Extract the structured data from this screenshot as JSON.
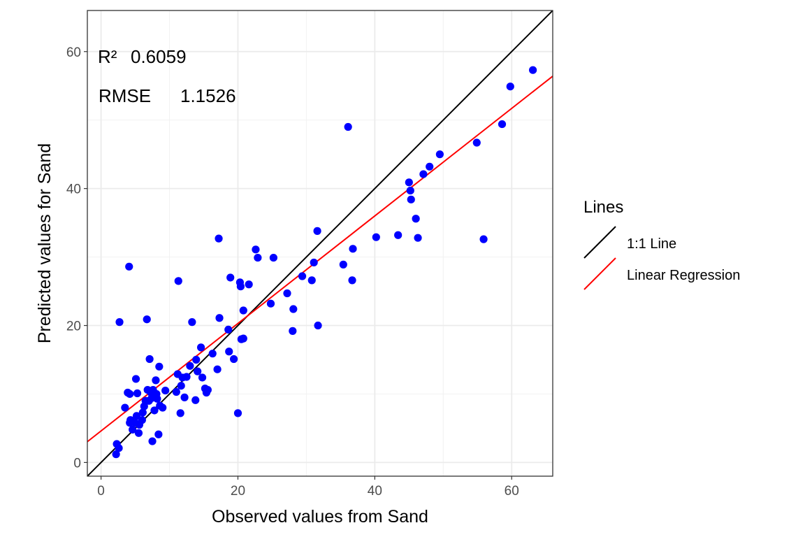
{
  "chart_data": {
    "type": "scatter",
    "xlabel": "Observed values from Sand",
    "ylabel": "Predicted values for Sand",
    "xlim": [
      -2,
      66
    ],
    "ylim": [
      -2,
      66
    ],
    "x_ticks": [
      0,
      20,
      40,
      60
    ],
    "y_ticks": [
      0,
      20,
      40,
      60
    ],
    "grid": true,
    "annotations": {
      "r2_label": "R²",
      "r2_value": "0.6059",
      "rmse_label": "RMSE",
      "rmse_value": "1.1526"
    },
    "legend": {
      "title": "Lines",
      "placement": "right",
      "entries": [
        {
          "label": "1:1 Line",
          "color": "#000000"
        },
        {
          "label": "Linear Regression",
          "color": "#ff0000"
        }
      ]
    },
    "lines": [
      {
        "name": "1:1 Line",
        "color": "#000000",
        "slope": 1,
        "intercept": 0
      },
      {
        "name": "Linear Regression",
        "color": "#ff0000",
        "slope": 0.785,
        "intercept": 4.6
      }
    ],
    "point_color": "#0000ff",
    "points": [
      [
        2.2,
        1.2
      ],
      [
        2.3,
        2.7
      ],
      [
        2.6,
        2.1
      ],
      [
        2.7,
        20.5
      ],
      [
        3.5,
        8.0
      ],
      [
        3.9,
        10.2
      ],
      [
        4.2,
        5.8
      ],
      [
        4.2,
        10.0
      ],
      [
        4.1,
        28.6
      ],
      [
        4.3,
        6.2
      ],
      [
        4.6,
        4.8
      ],
      [
        5.0,
        5.8
      ],
      [
        5.1,
        12.2
      ],
      [
        5.2,
        6.8
      ],
      [
        5.3,
        10.1
      ],
      [
        5.5,
        4.3
      ],
      [
        5.6,
        5.5
      ],
      [
        6.0,
        6.2
      ],
      [
        6.1,
        7.3
      ],
      [
        6.3,
        8.2
      ],
      [
        6.5,
        9.0
      ],
      [
        6.7,
        20.9
      ],
      [
        6.8,
        10.6
      ],
      [
        7.0,
        9.0
      ],
      [
        7.1,
        15.1
      ],
      [
        7.3,
        10.2
      ],
      [
        7.4,
        9.4
      ],
      [
        7.5,
        3.1
      ],
      [
        7.6,
        10.6
      ],
      [
        7.8,
        7.6
      ],
      [
        8.0,
        12.0
      ],
      [
        8.1,
        10.0
      ],
      [
        8.2,
        9.3
      ],
      [
        8.4,
        4.1
      ],
      [
        8.5,
        14.0
      ],
      [
        8.6,
        8.3
      ],
      [
        9.0,
        8.0
      ],
      [
        9.4,
        10.5
      ],
      [
        11.0,
        10.3
      ],
      [
        11.2,
        12.9
      ],
      [
        11.3,
        26.5
      ],
      [
        11.6,
        7.2
      ],
      [
        11.7,
        11.2
      ],
      [
        11.9,
        12.4
      ],
      [
        12.2,
        9.5
      ],
      [
        12.5,
        12.5
      ],
      [
        13.0,
        14.1
      ],
      [
        13.3,
        20.5
      ],
      [
        13.8,
        9.1
      ],
      [
        13.9,
        15.0
      ],
      [
        14.1,
        13.3
      ],
      [
        14.6,
        16.8
      ],
      [
        14.8,
        12.4
      ],
      [
        15.2,
        10.8
      ],
      [
        15.4,
        10.2
      ],
      [
        15.6,
        10.6
      ],
      [
        16.3,
        15.9
      ],
      [
        17.0,
        13.6
      ],
      [
        17.2,
        32.7
      ],
      [
        17.3,
        21.1
      ],
      [
        18.6,
        19.4
      ],
      [
        18.7,
        16.2
      ],
      [
        18.9,
        27.0
      ],
      [
        19.4,
        15.1
      ],
      [
        20.0,
        7.2
      ],
      [
        20.3,
        26.3
      ],
      [
        20.4,
        25.7
      ],
      [
        20.5,
        18.0
      ],
      [
        20.8,
        18.1
      ],
      [
        20.8,
        22.2
      ],
      [
        21.6,
        26.0
      ],
      [
        22.6,
        31.1
      ],
      [
        22.9,
        29.9
      ],
      [
        24.8,
        23.2
      ],
      [
        25.2,
        29.9
      ],
      [
        27.2,
        24.7
      ],
      [
        28.0,
        19.2
      ],
      [
        28.1,
        22.4
      ],
      [
        29.4,
        27.2
      ],
      [
        30.8,
        26.6
      ],
      [
        31.1,
        29.2
      ],
      [
        31.6,
        33.8
      ],
      [
        31.7,
        20.0
      ],
      [
        35.4,
        28.9
      ],
      [
        36.1,
        49.0
      ],
      [
        36.7,
        26.6
      ],
      [
        36.8,
        31.2
      ],
      [
        40.2,
        32.9
      ],
      [
        43.4,
        33.2
      ],
      [
        45.0,
        40.9
      ],
      [
        45.2,
        39.7
      ],
      [
        45.3,
        38.4
      ],
      [
        46.0,
        35.6
      ],
      [
        46.3,
        32.8
      ],
      [
        47.1,
        42.1
      ],
      [
        48.0,
        43.2
      ],
      [
        49.5,
        45.0
      ],
      [
        54.9,
        46.7
      ],
      [
        55.9,
        32.6
      ],
      [
        58.6,
        49.4
      ],
      [
        59.8,
        54.9
      ],
      [
        63.1,
        57.3
      ]
    ]
  }
}
